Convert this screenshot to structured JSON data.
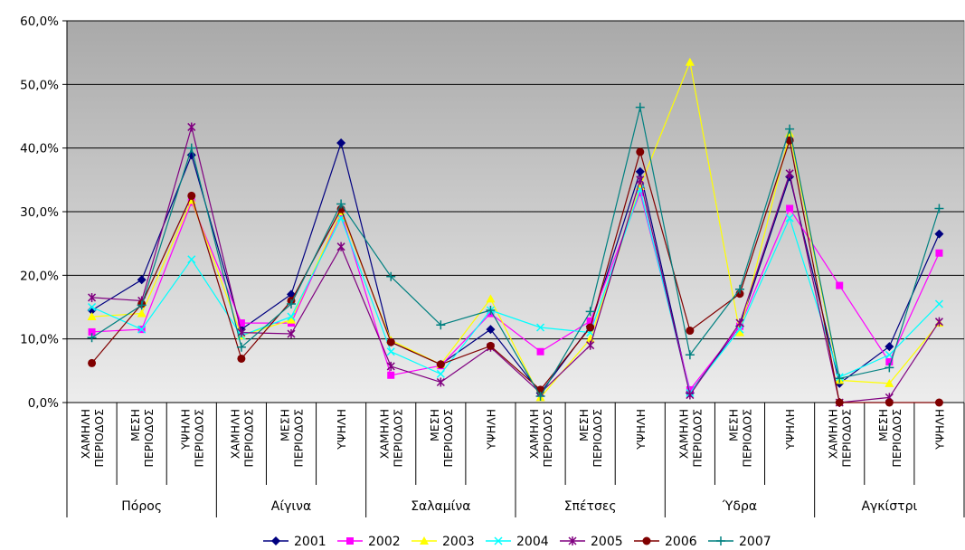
{
  "chart_data": {
    "type": "line",
    "ylim": [
      0,
      60
    ],
    "ytick_labels": [
      "0,0%",
      "10,0%",
      "20,0%",
      "30,0%",
      "40,0%",
      "50,0%",
      "60,0%"
    ],
    "grid": true,
    "legend_position": "bottom",
    "categories": [
      {
        "label": "ΧΑΜΗΛΗ ΠΕΡΙΟΔΟΣ",
        "lines": [
          "ΧΑΜΗΛΗ",
          "ΠΕΡΙΟΔΟΣ"
        ]
      },
      {
        "label": "ΜΕΣΗ ΠΕΡΙΟΔΟΣ",
        "lines": [
          "ΜΕΣΗ",
          "ΠΕΡΙΟΔΟΣ"
        ]
      },
      {
        "label": "ΥΨΗΛΗ ΠΕΡΙΟΔΟΣ",
        "lines": [
          "ΥΨΗΛΗ",
          "ΠΕΡΙΟΔΟΣ"
        ]
      },
      {
        "label": "ΧΑΜΗΛΗ ΠΕΡΙΟΔΟΣ",
        "lines": [
          "ΧΑΜΗΛΗ",
          "ΠΕΡΙΟΔΟΣ"
        ]
      },
      {
        "label": "ΜΕΣΗ ΠΕΡΙΟΔΟΣ",
        "lines": [
          "ΜΕΣΗ",
          "ΠΕΡΙΟΔΟΣ"
        ]
      },
      {
        "label": "ΥΨΗΛΗ",
        "lines": [
          "ΥΨΗΛΗ"
        ]
      },
      {
        "label": "ΧΑΜΗΛΗ ΠΕΡΙΟΔΟΣ",
        "lines": [
          "ΧΑΜΗΛΗ",
          "ΠΕΡΙΟΔΟΣ"
        ]
      },
      {
        "label": "ΜΕΣΗ ΠΕΡΙΟΔΟΣ",
        "lines": [
          "ΜΕΣΗ",
          "ΠΕΡΙΟΔΟΣ"
        ]
      },
      {
        "label": "ΥΨΗΛΗ",
        "lines": [
          "ΥΨΗΛΗ"
        ]
      },
      {
        "label": "ΧΑΜΗΛΗ ΠΕΡΙΟΔΟΣ",
        "lines": [
          "ΧΑΜΗΛΗ",
          "ΠΕΡΙΟΔΟΣ"
        ]
      },
      {
        "label": "ΜΕΣΗ ΠΕΡΙΟΔΟΣ",
        "lines": [
          "ΜΕΣΗ",
          "ΠΕΡΙΟΔΟΣ"
        ]
      },
      {
        "label": "ΥΨΗΛΗ",
        "lines": [
          "ΥΨΗΛΗ"
        ]
      },
      {
        "label": "ΧΑΜΗΛΗ ΠΕΡΙΟΔΟΣ",
        "lines": [
          "ΧΑΜΗΛΗ",
          "ΠΕΡΙΟΔΟΣ"
        ]
      },
      {
        "label": "ΜΕΣΗ ΠΕΡΙΟΔΟΣ",
        "lines": [
          "ΜΕΣΗ",
          "ΠΕΡΙΟΔΟΣ"
        ]
      },
      {
        "label": "ΥΨΗΛΗ",
        "lines": [
          "ΥΨΗΛΗ"
        ]
      },
      {
        "label": "ΧΑΜΗΛΗ ΠΕΡΙΟΔΟΣ",
        "lines": [
          "ΧΑΜΗΛΗ",
          "ΠΕΡΙΟΔΟΣ"
        ]
      },
      {
        "label": "ΜΕΣΗ ΠΕΡΙΟΔΟΣ",
        "lines": [
          "ΜΕΣΗ",
          "ΠΕΡΙΟΔΟΣ"
        ]
      },
      {
        "label": "ΥΨΗΛΗ",
        "lines": [
          "ΥΨΗΛΗ"
        ]
      }
    ],
    "groups": [
      "Πόρος",
      "Αίγινα",
      "Σαλαμίνα",
      "Σπέτσες",
      "Ύδρα",
      "Αγκίστρι"
    ],
    "series": [
      {
        "name": "2001",
        "color": "#000080",
        "marker": "diamond",
        "values": [
          14.5,
          19.3,
          38.9,
          11.5,
          17.0,
          40.8,
          9.5,
          6.0,
          11.5,
          1.5,
          12.0,
          36.3,
          1.5,
          12.0,
          35.5,
          3.0,
          8.8,
          26.5
        ]
      },
      {
        "name": "2002",
        "color": "#ff00ff",
        "marker": "square",
        "values": [
          11.1,
          11.5,
          31.5,
          12.5,
          12.5,
          29.8,
          4.3,
          5.8,
          14.0,
          8.0,
          12.8,
          33.0,
          2.0,
          12.0,
          30.5,
          18.4,
          6.4,
          23.5
        ]
      },
      {
        "name": "2003",
        "color": "#ffff00",
        "marker": "triangle",
        "values": [
          13.5,
          14.0,
          31.8,
          10.5,
          13.0,
          30.0,
          9.8,
          6.0,
          16.3,
          0.8,
          10.0,
          34.0,
          53.5,
          11.0,
          42.3,
          3.5,
          3.0,
          12.5
        ]
      },
      {
        "name": "2004",
        "color": "#00ffff",
        "marker": "x",
        "values": [
          15.0,
          11.5,
          22.5,
          10.5,
          13.5,
          29.0,
          8.0,
          4.5,
          14.5,
          11.8,
          11.0,
          33.5,
          1.5,
          11.5,
          29.0,
          4.0,
          7.5,
          15.5
        ]
      },
      {
        "name": "2005",
        "color": "#800080",
        "marker": "star",
        "values": [
          16.5,
          16.0,
          43.3,
          11.0,
          10.8,
          24.5,
          5.7,
          3.2,
          8.7,
          1.5,
          9.0,
          35.0,
          1.2,
          12.5,
          36.0,
          0.0,
          0.8,
          12.7
        ]
      },
      {
        "name": "2006",
        "color": "#800000",
        "marker": "circle",
        "values": [
          6.2,
          15.5,
          32.5,
          6.9,
          16.0,
          30.4,
          9.5,
          6.0,
          8.9,
          2.0,
          11.8,
          39.4,
          11.3,
          17.1,
          41.2,
          0.0,
          0.0,
          0.0
        ]
      },
      {
        "name": "2007",
        "color": "#008080",
        "marker": "plus",
        "values": [
          10.2,
          15.3,
          40.0,
          8.7,
          15.5,
          31.2,
          19.8,
          12.2,
          14.5,
          1.0,
          14.3,
          46.4,
          7.5,
          17.8,
          43.0,
          3.8,
          5.5,
          30.5
        ]
      }
    ]
  }
}
